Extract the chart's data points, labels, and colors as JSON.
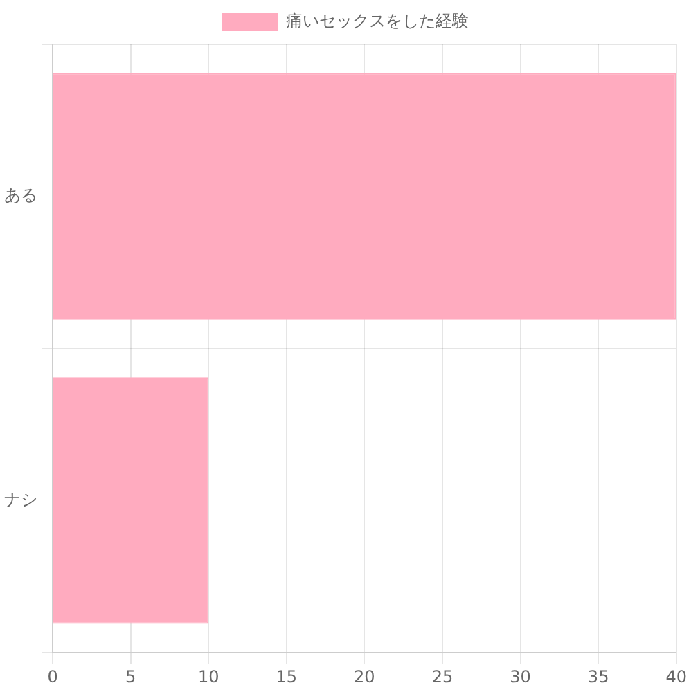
{
  "chart_data": {
    "type": "bar",
    "orientation": "horizontal",
    "categories": [
      "ある",
      "ナシ"
    ],
    "series": [
      {
        "name": "痛いセックスをした経験",
        "color": "#ffabbf",
        "values": [
          40,
          10
        ]
      }
    ],
    "xlim": [
      0,
      40
    ],
    "xticks": [
      0,
      5,
      10,
      15,
      20,
      25,
      30,
      35,
      40
    ],
    "grid": true,
    "legend": "top"
  }
}
